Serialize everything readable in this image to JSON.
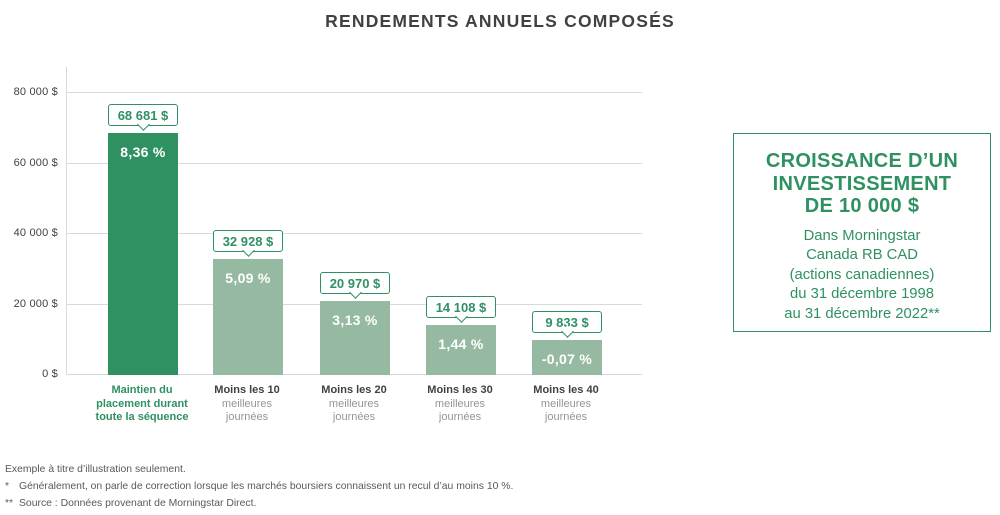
{
  "title": "RENDEMENTS ANNUELS COMPOSÉS",
  "colors": {
    "accent_green": "#2F9161",
    "bar_primary": "#2F9161",
    "bar_secondary": "#96BAA1",
    "title_gray": "#414042",
    "label_gray": "#939598",
    "footnote_gray": "#58595B",
    "gridline_gray": "#D8D9DA"
  },
  "chart_data": {
    "type": "bar",
    "title": "RENDEMENTS ANNUELS COMPOSÉS",
    "xlabel": "",
    "ylabel": "",
    "ylim": [
      0,
      80000
    ],
    "grid": true,
    "legend": false,
    "yticks": [
      {
        "value": 0,
        "label": "0 $"
      },
      {
        "value": 20000,
        "label": "20 000 $"
      },
      {
        "value": 40000,
        "label": "40 000 $"
      },
      {
        "value": 60000,
        "label": "60 000 $"
      },
      {
        "value": 80000,
        "label": "80 000 $"
      }
    ],
    "bars": [
      {
        "category_lines": [
          "Maintien du",
          "placement durant",
          "toute la séquence"
        ],
        "value": 68681,
        "value_label": "68 681 $",
        "annual_return": "8,36 %",
        "emphasis": true
      },
      {
        "category_lines": [
          "Moins les 10",
          "meilleures",
          "journées"
        ],
        "value": 32928,
        "value_label": "32 928 $",
        "annual_return": "5,09 %",
        "emphasis": false
      },
      {
        "category_lines": [
          "Moins les 20",
          "meilleures",
          "journées"
        ],
        "value": 20970,
        "value_label": "20 970 $",
        "annual_return": "3,13 %",
        "emphasis": false
      },
      {
        "category_lines": [
          "Moins les 30",
          "meilleures",
          "journées"
        ],
        "value": 14108,
        "value_label": "14 108 $",
        "annual_return": "1,44 %",
        "emphasis": false
      },
      {
        "category_lines": [
          "Moins les 40",
          "meilleures",
          "journées"
        ],
        "value": 9833,
        "value_label": "9 833 $",
        "annual_return": "-0,07 %",
        "emphasis": false
      }
    ]
  },
  "info_box": {
    "title": "CROISSANCE D’UN INVESTISSEMENT DE 10 000 $",
    "title_lines": [
      "CROISSANCE D’UN",
      "INVESTISSEMENT",
      "DE 10 000 $"
    ],
    "subtitle_lines": [
      "Dans Morningstar",
      "Canada RB CAD",
      "(actions canadiennes)",
      "du 31 décembre 1998",
      "au 31 décembre 2022**"
    ]
  },
  "footnotes": [
    {
      "marker": "",
      "text": "Exemple à titre d’illustration seulement."
    },
    {
      "marker": "*",
      "text": "Généralement, on parle de correction lorsque les marchés boursiers connaissent un recul d’au moins 10 %."
    },
    {
      "marker": "**",
      "text": "Source : Données provenant de Morningstar Direct."
    }
  ]
}
